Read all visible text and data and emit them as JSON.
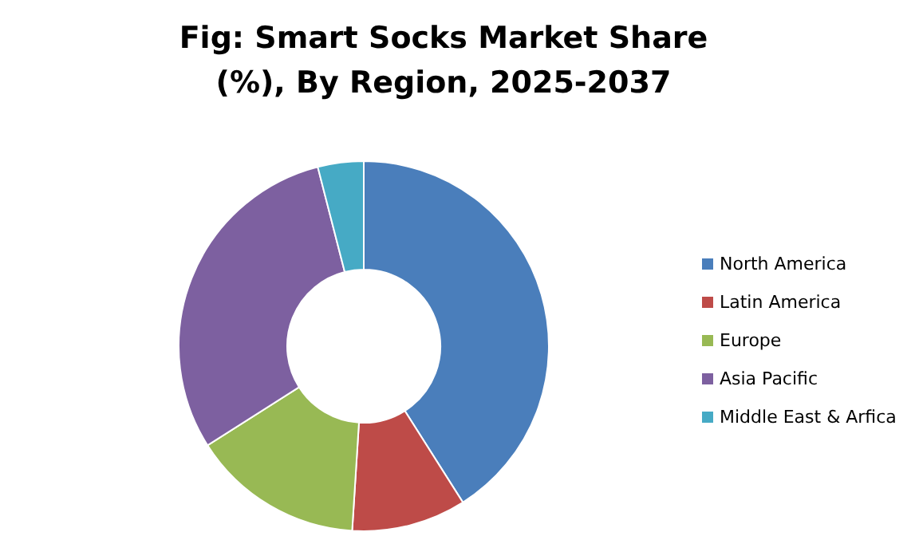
{
  "chart_data": {
    "type": "donut",
    "title": "Fig: Smart Socks Market Share (%), By Region, 2025-2037",
    "categories": [
      "North America",
      "Latin America",
      "Europe",
      "Asia Pacific",
      "Middle East & Arfica"
    ],
    "values": [
      41,
      10,
      15,
      30,
      4
    ],
    "colors": [
      "#4a7ebb",
      "#be4b48",
      "#98b954",
      "#7d60a0",
      "#46aac5"
    ],
    "legend": "right"
  }
}
